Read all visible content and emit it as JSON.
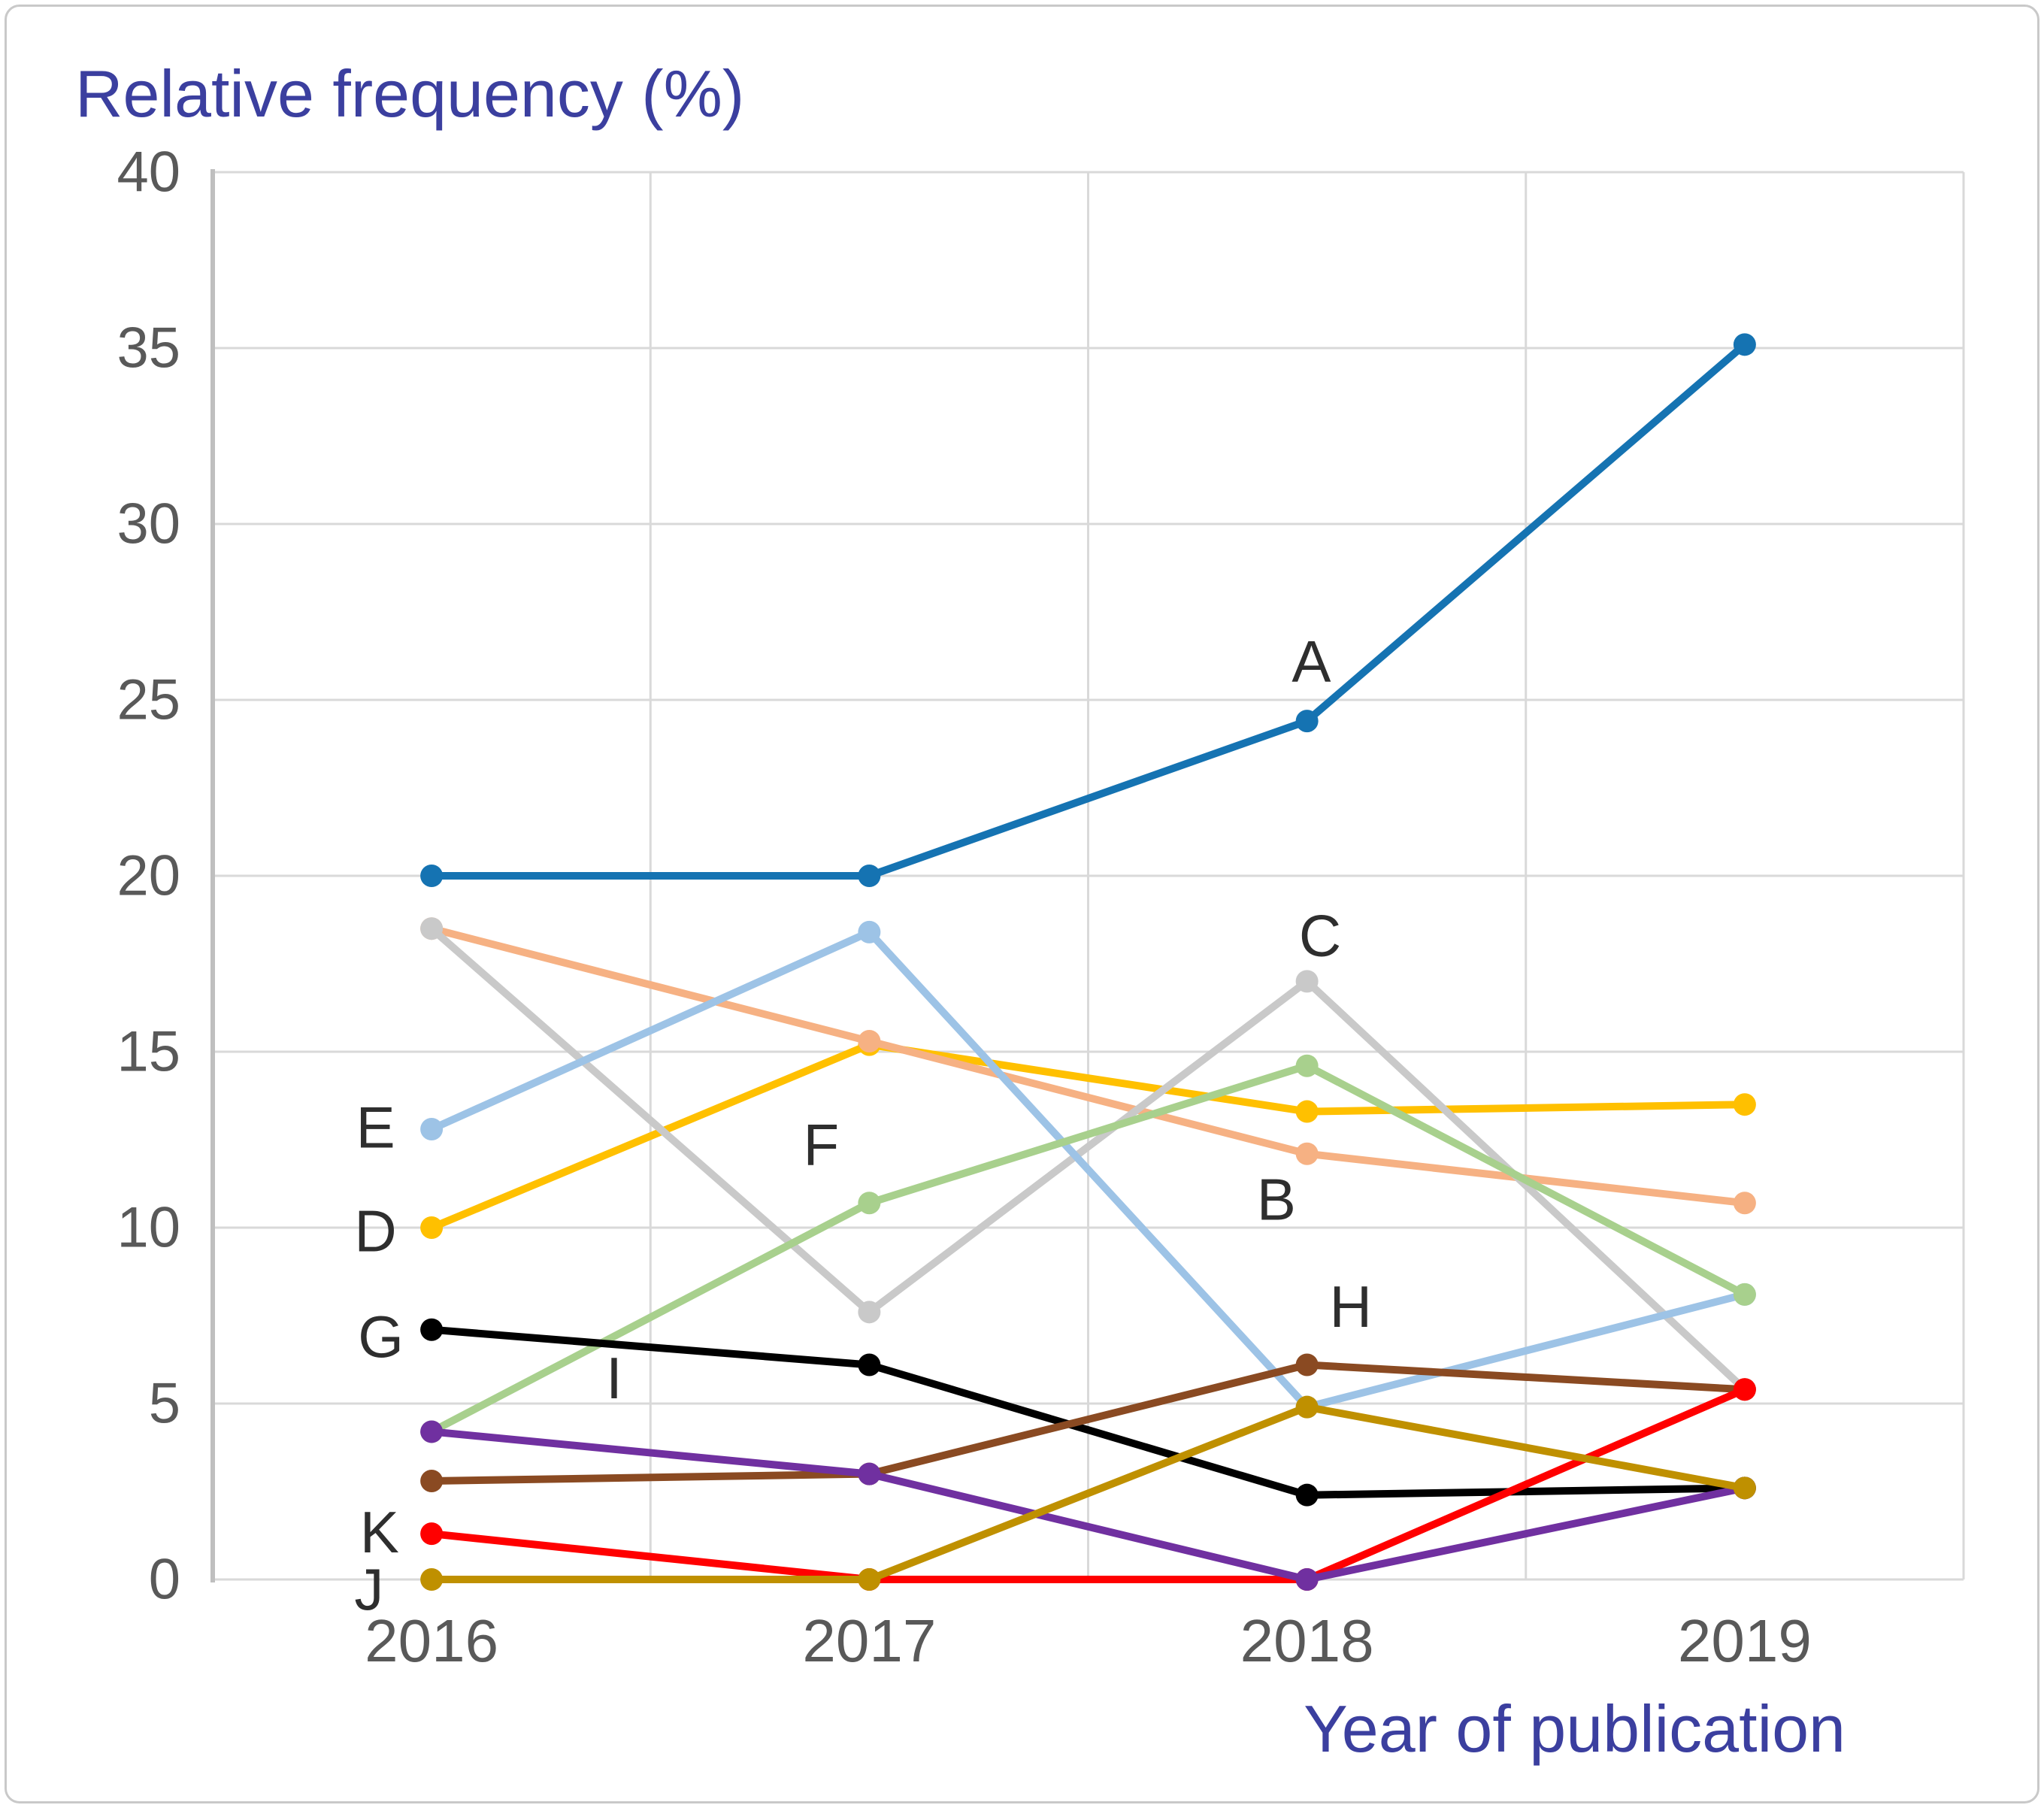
{
  "title": "Relative frequency (%)",
  "x_axis_label": "Year of publication",
  "colors": {
    "title_text": "#3b3f9f",
    "axis_tick_text": "#595959",
    "annotation_text": "#2e2e2e",
    "gridline": "#d9d9d9",
    "axis_line": "#bfbfbf",
    "frame_border": "#c9c9c9",
    "background": "#ffffff"
  },
  "chart_data": {
    "type": "line",
    "title": "Relative frequency (%)",
    "xlabel": "Year of publication",
    "ylabel": "Relative frequency (%)",
    "categories": [
      "2016",
      "2017",
      "2018",
      "2019"
    ],
    "y_ticks": [
      0,
      5,
      10,
      15,
      20,
      25,
      30,
      35,
      40
    ],
    "ylim": [
      0,
      40
    ],
    "grid": true,
    "legend_position": "none",
    "series": [
      {
        "name": "A",
        "color": "#1573b2",
        "values": [
          20.0,
          20.0,
          24.4,
          35.1
        ]
      },
      {
        "name": "D",
        "color": "#ffc000",
        "values": [
          10.0,
          15.2,
          13.3,
          13.5
        ]
      },
      {
        "name": "B",
        "color": "#f6b183",
        "values": [
          18.5,
          15.3,
          12.1,
          10.7
        ]
      },
      {
        "name": "C",
        "color": "#c9c9c9",
        "values": [
          18.5,
          7.6,
          17.0,
          5.4
        ]
      },
      {
        "name": "E",
        "color": "#9dc3e6",
        "values": [
          12.8,
          18.4,
          4.9,
          8.1
        ]
      },
      {
        "name": "F",
        "color": "#a8d08d",
        "values": [
          4.2,
          10.7,
          14.6,
          8.1
        ]
      },
      {
        "name": "G",
        "color": "#000000",
        "values": [
          7.1,
          6.1,
          2.4,
          2.6
        ]
      },
      {
        "name": "H",
        "color": "#8a4a22",
        "values": [
          2.8,
          3.0,
          6.1,
          5.4
        ]
      },
      {
        "name": "K",
        "color": "#ff0000",
        "values": [
          1.3,
          0.0,
          0.0,
          5.4
        ]
      },
      {
        "name": "I",
        "color": "#7030a0",
        "values": [
          4.2,
          3.0,
          0.0,
          2.6
        ]
      },
      {
        "name": "J",
        "color": "#bf9000",
        "values": [
          0.0,
          0.0,
          4.9,
          2.6
        ]
      }
    ],
    "annotations": [
      {
        "text": "A",
        "x": 2.01,
        "y": 26.1
      },
      {
        "text": "B",
        "x": 1.93,
        "y": 10.8
      },
      {
        "text": "C",
        "x": 2.03,
        "y": 18.3
      },
      {
        "text": "D",
        "x": -0.128,
        "y": 9.9
      },
      {
        "text": "E",
        "x": -0.128,
        "y": 12.85
      },
      {
        "text": "F",
        "x": 0.89,
        "y": 12.35
      },
      {
        "text": "G",
        "x": -0.116,
        "y": 6.9
      },
      {
        "text": "H",
        "x": 2.1,
        "y": 7.76
      },
      {
        "text": "I",
        "x": 0.417,
        "y": 5.73
      },
      {
        "text": "J",
        "x": -0.143,
        "y": -0.28
      },
      {
        "text": "K",
        "x": -0.119,
        "y": 1.35
      }
    ]
  }
}
